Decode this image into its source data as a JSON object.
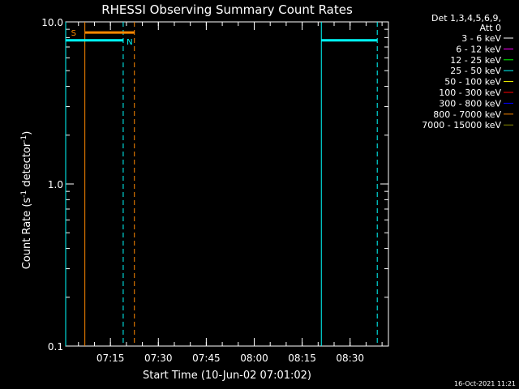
{
  "chart_data": {
    "type": "line",
    "title": "RHESSI Observing Summary Count Rates",
    "xlabel": "Start Time (10-Jun-02 07:01:02)",
    "ylabel_main": "Count Rate (s",
    "ylabel_sup1": "-1",
    "ylabel_mid": " detector",
    "ylabel_sup2": "-1",
    "ylabel_end": ")",
    "y_scale": "log",
    "ylim": [
      0.1,
      10.0
    ],
    "y_ticks": [
      {
        "value": 0.1,
        "label": "0.1"
      },
      {
        "value": 1.0,
        "label": "1.0"
      },
      {
        "value": 10.0,
        "label": "10.0"
      }
    ],
    "x_range_min": [
      0,
      101
    ],
    "x_ticks": [
      {
        "value": 14,
        "label": "07:15"
      },
      {
        "value": 29,
        "label": "07:30"
      },
      {
        "value": 44,
        "label": "07:45"
      },
      {
        "value": 59,
        "label": "08:00"
      },
      {
        "value": 74,
        "label": "08:15"
      },
      {
        "value": 89,
        "label": "08:30"
      }
    ],
    "legend_header": [
      "Det 1,3,4,5,6,9,",
      "Att 0"
    ],
    "legend": [
      {
        "label": "3 - 6 keV",
        "color": "#ffffff"
      },
      {
        "label": "6 - 12 keV",
        "color": "#ff00ff"
      },
      {
        "label": "12 - 25 keV",
        "color": "#00ff00"
      },
      {
        "label": "25 - 50 keV",
        "color": "#00ffff"
      },
      {
        "label": "50 - 100 keV",
        "color": "#ffff00"
      },
      {
        "label": "100 - 300 keV",
        "color": "#ff0000"
      },
      {
        "label": "300 - 800 keV",
        "color": "#0000ff"
      },
      {
        "label": "800 - 7000 keV",
        "color": "#ff8800"
      },
      {
        "label": "7000 - 15000 keV",
        "color": "#888800"
      }
    ],
    "series": [
      {
        "color": "#00ffff",
        "segments": [
          [
            [
              0,
              7.7
            ],
            [
              18,
              7.7
            ]
          ],
          [
            [
              80,
              7.7
            ],
            [
              97.5,
              7.7
            ]
          ]
        ]
      },
      {
        "color": "#ff8800",
        "segments": [
          [
            [
              6,
              8.6
            ],
            [
              21.5,
              8.6
            ]
          ]
        ]
      }
    ],
    "vlines": [
      {
        "x": 0,
        "color": "#00ffff",
        "style": "solid"
      },
      {
        "x": 6,
        "color": "#ff8800",
        "style": "solid"
      },
      {
        "x": 18,
        "color": "#00ffff",
        "style": "dashed"
      },
      {
        "x": 21.5,
        "color": "#ff8800",
        "style": "dashed"
      },
      {
        "x": 80,
        "color": "#00ffff",
        "style": "solid"
      },
      {
        "x": 97.5,
        "color": "#00ffff",
        "style": "dashed"
      }
    ],
    "annotations": [
      {
        "text": "S",
        "x": 2.5,
        "y": 8.6,
        "color": "#ff8800"
      },
      {
        "text": "N",
        "x": 20,
        "y": 7.6,
        "color": "#00ffff"
      }
    ]
  },
  "footer_timestamp": "16-Oct-2021 11:21"
}
